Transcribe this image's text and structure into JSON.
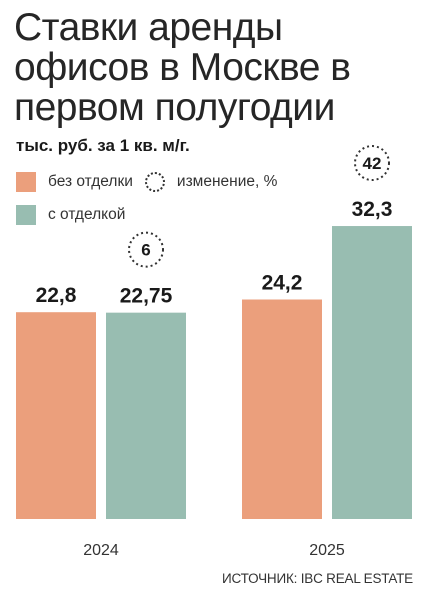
{
  "title": "Ставки аренды офисов в Москве в первом полугодии",
  "subtitle": "тыс. руб. за 1 кв. м/г.",
  "legend": {
    "unfinished": "без отделки",
    "change": "изменение, %",
    "finished": "с отделкой"
  },
  "source": "ИСТОЧНИК: IBC REAL ESTATE",
  "colors": {
    "unfinished": "#eb9f7c",
    "finished": "#98bdb1",
    "text": "#1a1a1a"
  },
  "chart_data": {
    "type": "bar",
    "title": "Ставки аренды офисов в Москве в первом полугодии",
    "subtitle": "тыс. руб. за 1 кв. м/г.",
    "categories": [
      "2024",
      "2025"
    ],
    "series": [
      {
        "name": "без отделки",
        "values": [
          22.8,
          24.2
        ],
        "labels": [
          "22,8",
          "24,2"
        ],
        "color": "#eb9f7c"
      },
      {
        "name": "с отделкой",
        "values": [
          22.75,
          32.3
        ],
        "labels": [
          "22,75",
          "32,3"
        ],
        "color": "#98bdb1"
      }
    ],
    "change_percent": {
      "series": "с отделкой",
      "values": [
        6,
        42
      ],
      "labels": [
        "6",
        "42"
      ]
    },
    "legend_position": "top-left",
    "grid": false
  }
}
